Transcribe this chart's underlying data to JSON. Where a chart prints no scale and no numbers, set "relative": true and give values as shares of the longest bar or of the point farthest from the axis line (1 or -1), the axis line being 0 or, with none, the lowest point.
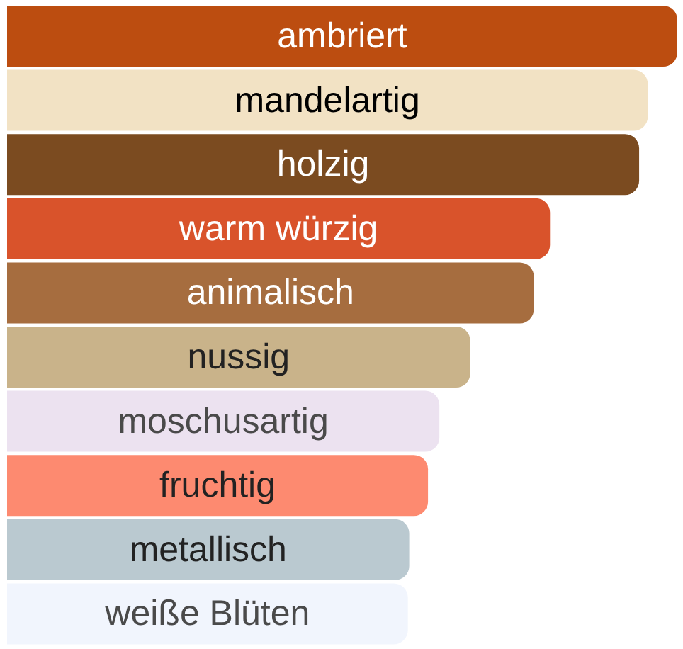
{
  "chart_data": {
    "type": "bar",
    "orientation": "horizontal",
    "relative": true,
    "categories": [
      "ambriert",
      "mandelartig",
      "holzig",
      "warm würzig",
      "animalisch",
      "nussig",
      "moschusartig",
      "fruchtig",
      "metallisch",
      "weiße Blüten"
    ],
    "values": [
      1,
      0.956,
      0.943,
      0.81,
      0.786,
      0.691,
      0.645,
      0.628,
      0.6,
      0.598
    ],
    "colors": [
      "#bc4d10",
      "#f2e2c4",
      "#7b4b20",
      "#d9532b",
      "#a66d3f",
      "#c9b38a",
      "#ece2f0",
      "#fd8a70",
      "#bac9d0",
      "#f1f5fd"
    ],
    "grid": false,
    "legend": false
  }
}
